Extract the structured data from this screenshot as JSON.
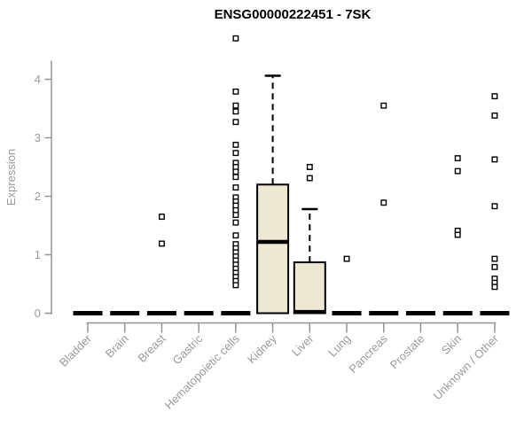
{
  "chart_data": {
    "type": "boxplot",
    "title": "ENSG00000222451 - 7SK",
    "ylabel": "Expression",
    "yticks": [
      0,
      1,
      2,
      3,
      4
    ],
    "ylim": [
      0,
      4.75
    ],
    "grid": false,
    "legend": "none",
    "colors": {
      "box_fill": "#ede8d1",
      "box_stroke": "#000000",
      "axis_line": "#949494",
      "tick_label": "#9a9a9a",
      "title_text": "#000000",
      "outlier_stroke": "#000000"
    },
    "categories": [
      "Bladder",
      "Brain",
      "Breast",
      "Gastric",
      "Hematopoietic cells",
      "Kidney",
      "Liver",
      "Lung",
      "Pancreas",
      "Prostate",
      "Skin",
      "Unknown / Other"
    ],
    "boxes": [
      {
        "category": "Bladder",
        "q1": 0,
        "median": 0,
        "q3": 0,
        "whisker_low": 0,
        "whisker_high": 0,
        "outliers": []
      },
      {
        "category": "Brain",
        "q1": 0,
        "median": 0,
        "q3": 0,
        "whisker_low": 0,
        "whisker_high": 0,
        "outliers": []
      },
      {
        "category": "Breast",
        "q1": 0,
        "median": 0,
        "q3": 0,
        "whisker_low": 0,
        "whisker_high": 0,
        "outliers": [
          1.65,
          1.19
        ]
      },
      {
        "category": "Gastric",
        "q1": 0,
        "median": 0,
        "q3": 0,
        "whisker_low": 0,
        "whisker_high": 0,
        "outliers": []
      },
      {
        "category": "Hematopoietic cells",
        "q1": 0,
        "median": 0,
        "q3": 0,
        "whisker_low": 0,
        "whisker_high": 0,
        "outliers": [
          4.7,
          3.79,
          3.55,
          3.45,
          3.27,
          2.88,
          2.74,
          2.57,
          2.5,
          2.42,
          2.33,
          2.15,
          1.98,
          1.91,
          1.84,
          1.76,
          1.68,
          1.55,
          1.33,
          1.18,
          1.11,
          1.04,
          0.97,
          0.9,
          0.83,
          0.76,
          0.69,
          0.62,
          0.55,
          0.48
        ]
      },
      {
        "category": "Kidney",
        "q1": 0,
        "median": 1.22,
        "q3": 2.2,
        "whisker_low": 0,
        "whisker_high": 4.06,
        "outliers": []
      },
      {
        "category": "Liver",
        "q1": 0,
        "median": 0.02,
        "q3": 0.87,
        "whisker_low": 0,
        "whisker_high": 1.78,
        "outliers": [
          2.5,
          2.31
        ]
      },
      {
        "category": "Lung",
        "q1": 0,
        "median": 0,
        "q3": 0,
        "whisker_low": 0,
        "whisker_high": 0,
        "outliers": [
          0.93
        ]
      },
      {
        "category": "Pancreas",
        "q1": 0,
        "median": 0,
        "q3": 0,
        "whisker_low": 0,
        "whisker_high": 0,
        "outliers": [
          3.55,
          1.89
        ]
      },
      {
        "category": "Prostate",
        "q1": 0,
        "median": 0,
        "q3": 0,
        "whisker_low": 0,
        "whisker_high": 0,
        "outliers": []
      },
      {
        "category": "Skin",
        "q1": 0,
        "median": 0,
        "q3": 0,
        "whisker_low": 0,
        "whisker_high": 0,
        "outliers": [
          2.65,
          2.43,
          1.41,
          1.34
        ]
      },
      {
        "category": "Unknown / Other",
        "q1": 0,
        "median": 0,
        "q3": 0,
        "whisker_low": 0,
        "whisker_high": 0,
        "outliers": [
          3.71,
          3.38,
          2.63,
          1.83,
          0.93,
          0.79,
          0.59,
          0.52,
          0.45
        ]
      }
    ]
  }
}
